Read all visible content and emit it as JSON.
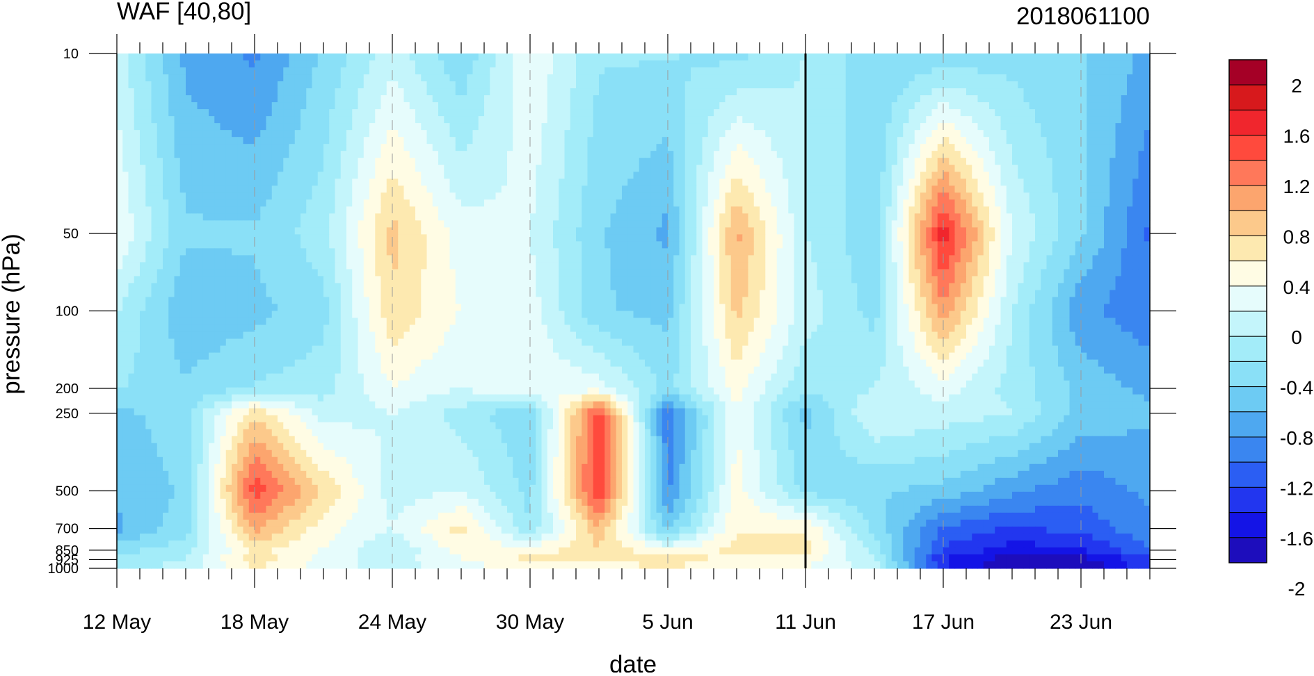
{
  "chart_data": {
    "type": "heatmap",
    "title_left": "WAF [40,80]",
    "title_right": "2018061100",
    "xlabel": "date",
    "ylabel": "pressure (hPa)",
    "x_ticks": [
      "12 May",
      "18 May",
      "24 May",
      "30 May",
      "5 Jun",
      "11 Jun",
      "17 Jun",
      "23 Jun"
    ],
    "x_tick_days": [
      0,
      6,
      12,
      18,
      24,
      30,
      36,
      42
    ],
    "x_range_days": [
      0,
      45
    ],
    "y_scale": "log",
    "y_ticks": [
      10,
      50,
      100,
      200,
      250,
      500,
      700,
      850,
      925,
      1000
    ],
    "y_range": [
      1000,
      10
    ],
    "forecast_start": "11 Jun",
    "colorbar": {
      "labels": [
        "2",
        "1.6",
        "1.2",
        "0.8",
        "0.4",
        "0",
        "-0.4",
        "-0.8",
        "-1.2",
        "-1.6",
        "-2"
      ],
      "colors": [
        "#a50026",
        "#d7191c",
        "#f0262d",
        "#ff4a3d",
        "#ff785a",
        "#fca56e",
        "#fcc98b",
        "#fde9b0",
        "#fffce4",
        "#e6fcfc",
        "#c4f5fb",
        "#a3ecf9",
        "#8ae0f7",
        "#6dcbf3",
        "#4ea8f0",
        "#3a86f0",
        "#2b5ef3",
        "#2236ef",
        "#1414e6",
        "#1d0dbc"
      ]
    },
    "values": {
      "levels": [
        10,
        50,
        100,
        200,
        250,
        500,
        700,
        850,
        925,
        1000
      ],
      "days": [
        0,
        3,
        6,
        9,
        12,
        15,
        18,
        21,
        24,
        27,
        30,
        33,
        36,
        39,
        42,
        45
      ],
      "grid": [
        [
          -0.1,
          -0.9,
          -1.1,
          -0.6,
          -0.1,
          -0.6,
          0.2,
          -0.4,
          -0.4,
          -0.5,
          -0.2,
          -0.6,
          -0.6,
          -0.5,
          -0.6,
          -0.9
        ],
        [
          0.2,
          -0.6,
          -0.6,
          -0.3,
          0.7,
          0.1,
          0.0,
          -0.6,
          -0.9,
          0.9,
          -0.2,
          -0.6,
          1.6,
          0.0,
          -0.6,
          -1.3
        ],
        [
          -0.2,
          -0.8,
          -0.7,
          -0.5,
          0.6,
          0.2,
          0.1,
          -0.6,
          -0.7,
          0.7,
          -0.1,
          -0.5,
          1.0,
          -0.2,
          -1.0,
          -1.2
        ],
        [
          -0.4,
          -0.6,
          -0.4,
          -0.3,
          0.2,
          0.0,
          0.2,
          0.1,
          -0.5,
          0.3,
          -0.4,
          -0.2,
          0.1,
          -0.3,
          -0.7,
          -0.9
        ],
        [
          -0.7,
          -0.5,
          0.6,
          -0.1,
          0.0,
          -0.3,
          -0.6,
          1.4,
          -1.2,
          0.2,
          -0.7,
          0.0,
          -0.1,
          -0.2,
          -0.7,
          -0.8
        ],
        [
          -0.8,
          -0.6,
          1.4,
          0.6,
          -0.1,
          0.0,
          -0.5,
          1.5,
          -1.1,
          0.3,
          -0.5,
          -0.6,
          -0.7,
          -1.0,
          -1.2,
          -1.0
        ],
        [
          -0.9,
          -0.5,
          0.9,
          0.3,
          0.0,
          0.5,
          -0.4,
          0.8,
          -0.7,
          0.4,
          0.4,
          -0.5,
          -1.3,
          -1.5,
          -1.4,
          -1.1
        ],
        [
          -0.5,
          -0.3,
          0.5,
          0.2,
          -0.2,
          0.3,
          0.3,
          0.6,
          0.2,
          0.5,
          0.5,
          -0.3,
          -1.5,
          -1.8,
          -1.7,
          -1.3
        ],
        [
          -0.4,
          -0.2,
          0.6,
          0.1,
          -0.1,
          0.2,
          0.5,
          0.4,
          0.6,
          0.3,
          0.3,
          -0.2,
          -1.7,
          -2.0,
          -2.0,
          -1.5
        ],
        [
          -0.3,
          -0.1,
          0.4,
          0.1,
          -0.1,
          0.1,
          0.3,
          0.3,
          0.4,
          0.2,
          0.2,
          -0.1,
          -1.6,
          -2.1,
          -2.1,
          -1.5
        ]
      ]
    }
  }
}
